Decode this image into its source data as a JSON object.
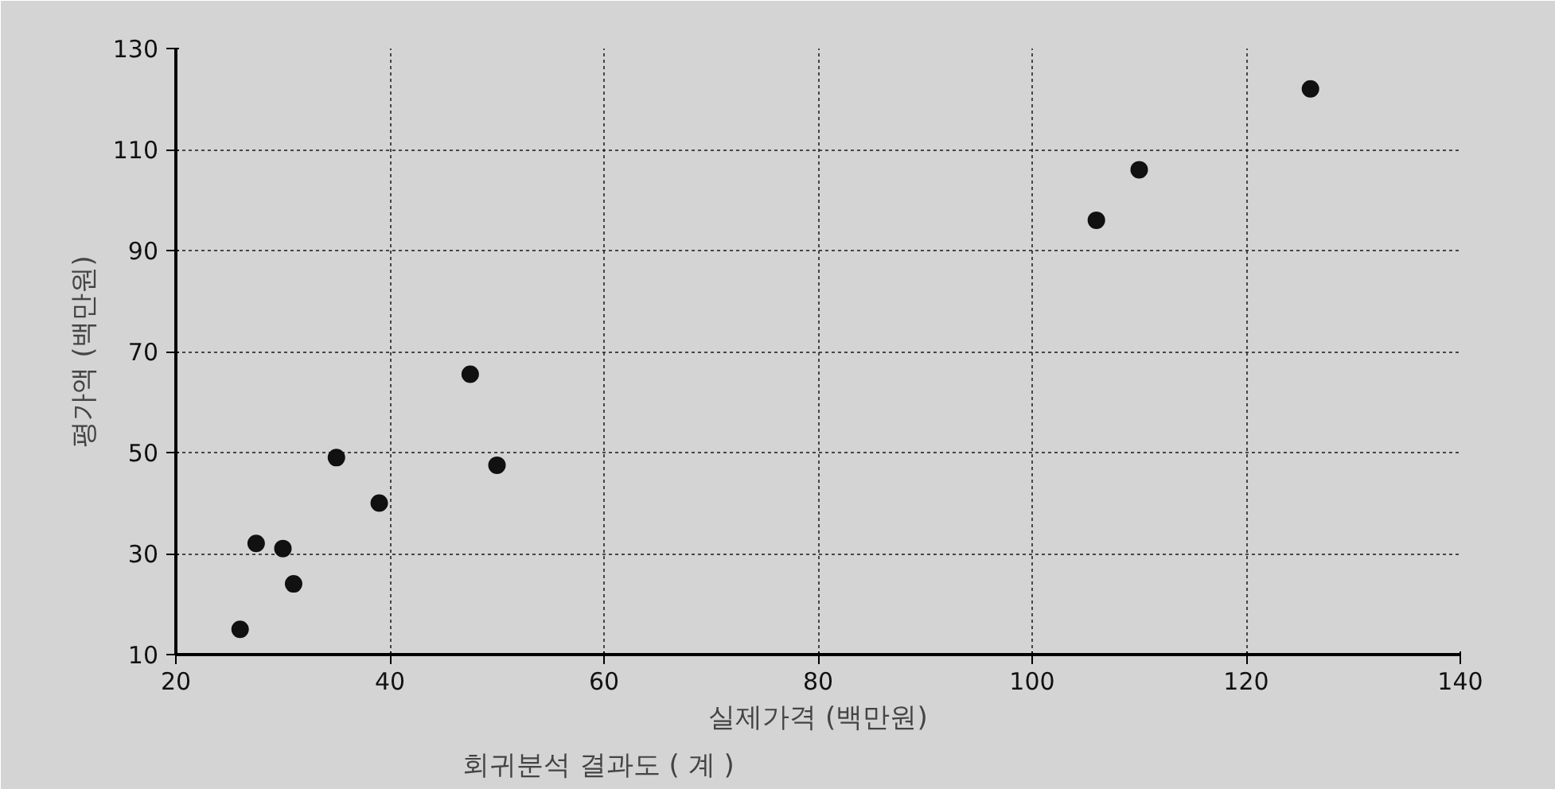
{
  "chart_data": {
    "type": "scatter",
    "title": "회귀분석 결과도 (  계  )",
    "xlabel": "실제가격 (백만원)",
    "ylabel": "평가액 (백만원)",
    "x": [
      26,
      27.5,
      30,
      31,
      35,
      39,
      47.5,
      50,
      106,
      110,
      126
    ],
    "values": [
      15,
      32,
      31,
      24,
      49,
      40,
      65.5,
      47.5,
      96,
      106,
      122
    ],
    "color": "#111111",
    "marker": "circle",
    "grid": true,
    "xlim": [
      20,
      140
    ],
    "xticks": [
      20,
      40,
      60,
      80,
      100,
      120,
      140
    ],
    "ylim": [
      10,
      130
    ],
    "yticks": [
      10,
      30,
      50,
      70,
      90,
      110,
      130
    ]
  }
}
